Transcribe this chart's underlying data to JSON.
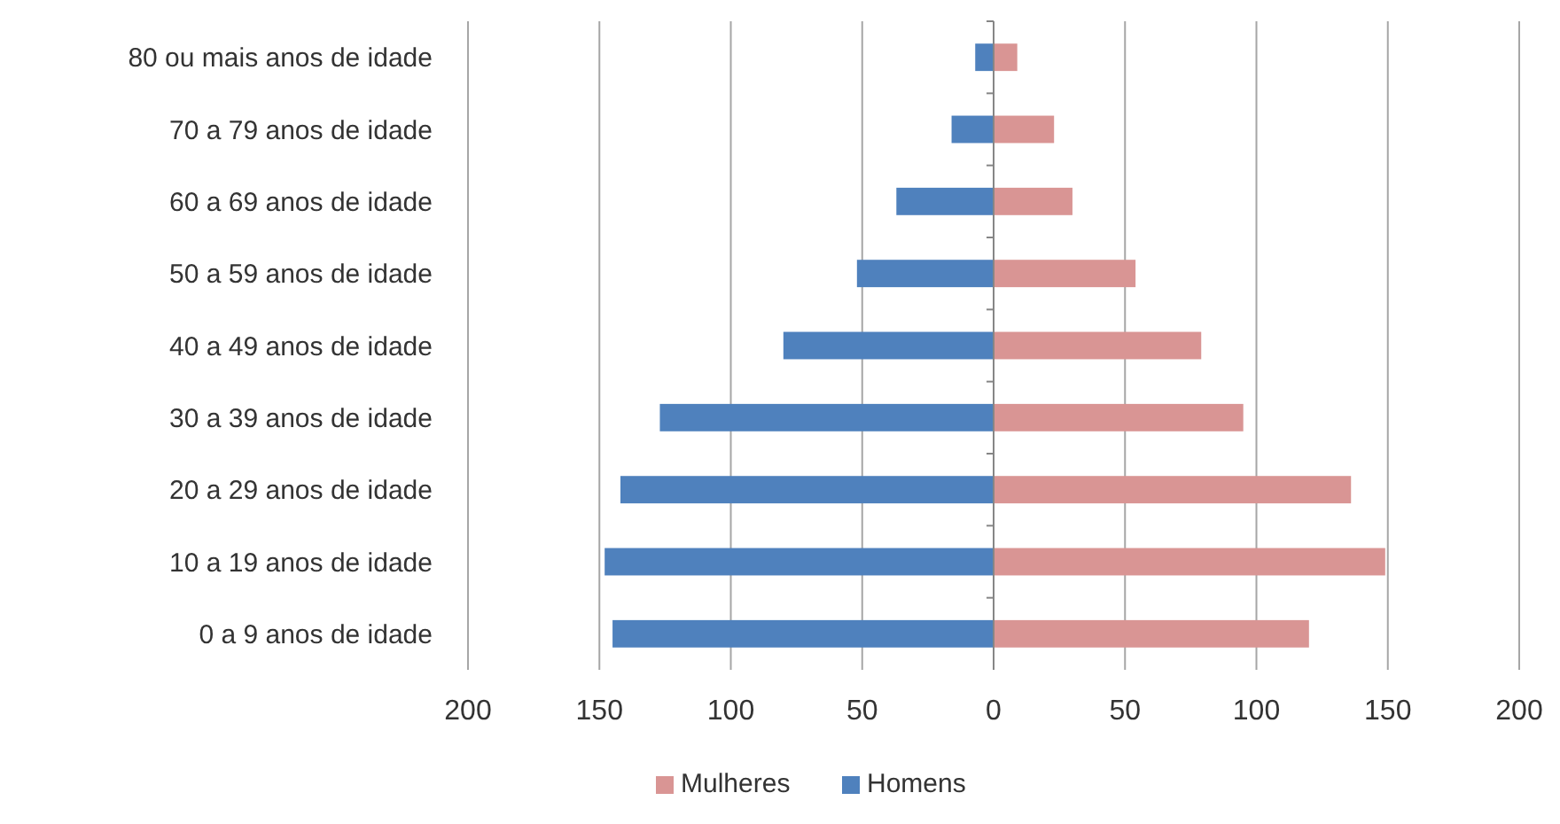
{
  "chart_data": {
    "type": "bar",
    "orientation": "horizontal",
    "stacked": true,
    "categories": [
      "80 ou mais anos de idade",
      "70 a 79 anos de idade",
      "60 a 69 anos de idade",
      "50 a 59 anos de idade",
      "40 a 49 anos de idade",
      "30 a 39 anos de idade",
      "20 a 29 anos de idade",
      "10 a 19 anos de idade",
      "0 a 9 anos de idade"
    ],
    "series": [
      {
        "name": "Mulheres",
        "color": "#d99594",
        "values": [
          9,
          23,
          30,
          54,
          79,
          95,
          136,
          149,
          120
        ]
      },
      {
        "name": "Homens",
        "color": "#4f81bd",
        "values": [
          -7,
          -16,
          -37,
          -52,
          -80,
          -127,
          -142,
          -148,
          -145
        ]
      }
    ],
    "xlim": [
      -200,
      200
    ],
    "xticks": [
      {
        "value": -200,
        "label": "200"
      },
      {
        "value": -150,
        "label": "150"
      },
      {
        "value": -100,
        "label": "100"
      },
      {
        "value": -50,
        "label": "50"
      },
      0,
      50,
      100,
      150,
      200
    ],
    "grid": "x",
    "legend": "bottom"
  }
}
